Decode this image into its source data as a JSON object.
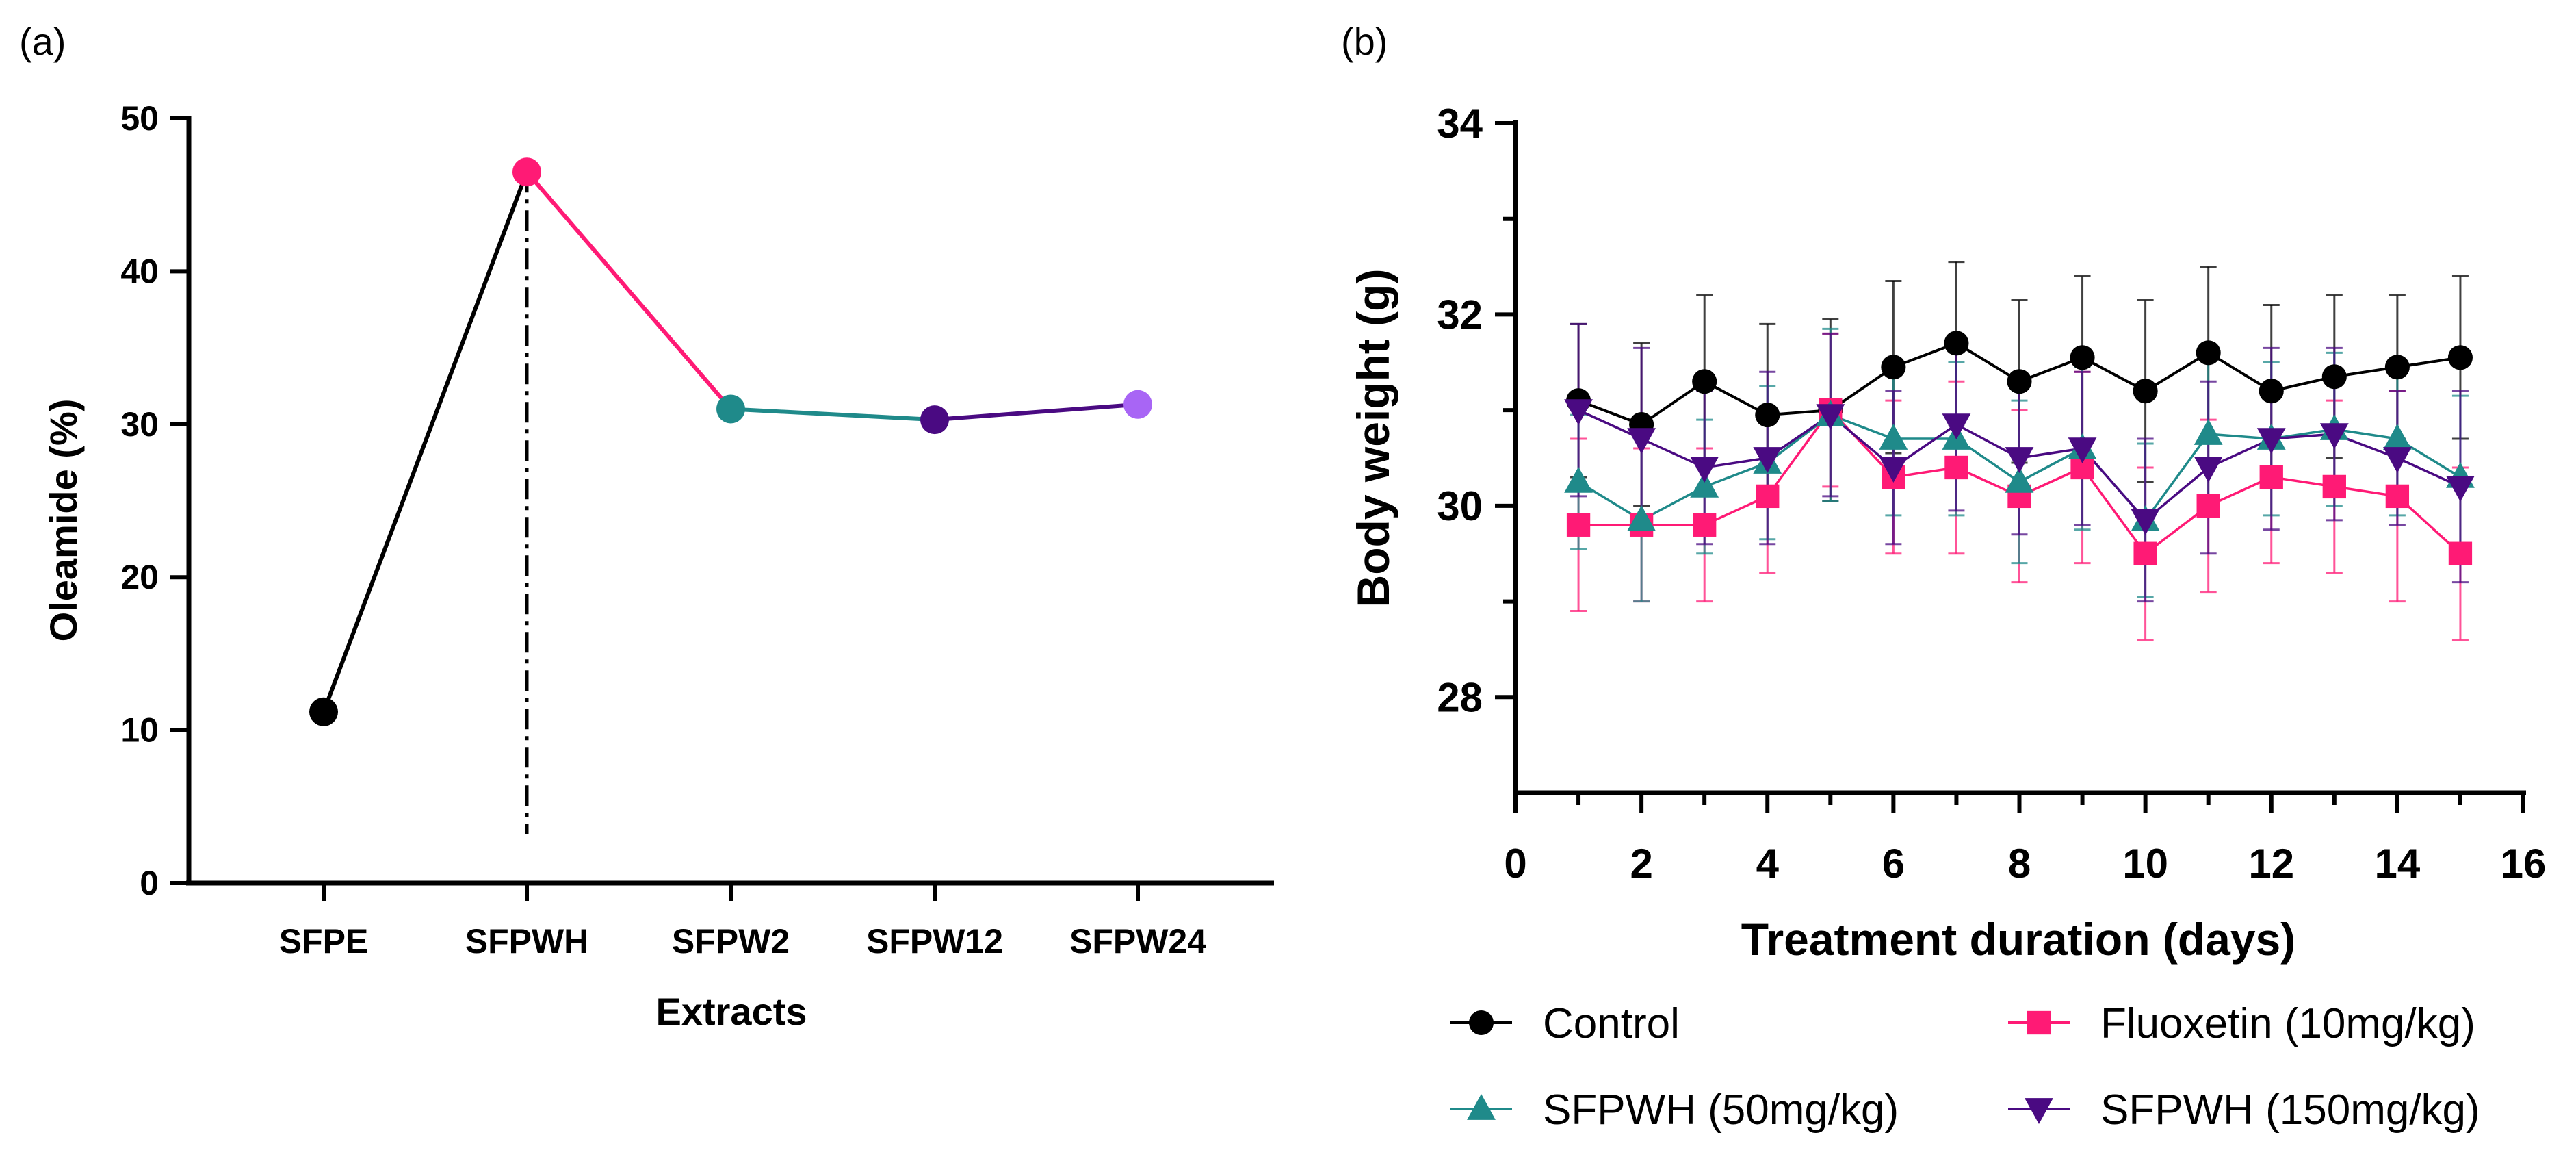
{
  "chart_data": [
    {
      "panel": "(a)",
      "type": "line",
      "categories": [
        "SFPE",
        "SFPWH",
        "SFPW2",
        "SFPW12",
        "SFPW24"
      ],
      "values": [
        11.2,
        46.5,
        31.0,
        30.3,
        31.3
      ],
      "point_colors": [
        "#000000",
        "#ff1a75",
        "#1f8a8a",
        "#4a0a82",
        "#a865f5"
      ],
      "segment_colors": [
        "#000000",
        "#ff1a75",
        "#1f8a8a",
        "#4a0a82"
      ],
      "xlabel": "Extracts",
      "ylabel": "Oleamide (%)",
      "ylim": [
        0,
        50
      ],
      "yticks": [
        "0",
        "10",
        "20",
        "30",
        "40",
        "50"
      ],
      "reference_line": {
        "category": "SFPWH",
        "style": "dash-dot"
      }
    },
    {
      "panel": "(b)",
      "type": "line",
      "xlabel": "Treatment duration (days)",
      "ylabel": "Body weight (g)",
      "xlim": [
        0,
        16
      ],
      "ylim": [
        27,
        34
      ],
      "xticks": [
        "0",
        "2",
        "4",
        "6",
        "8",
        "10",
        "12",
        "14",
        "16"
      ],
      "yticks": [
        "28",
        "30",
        "32",
        "34"
      ],
      "x": [
        1,
        2,
        3,
        4,
        5,
        6,
        7,
        8,
        9,
        10,
        11,
        12,
        13,
        14,
        15
      ],
      "series": [
        {
          "name": "Control",
          "color": "#000000",
          "marker": "circle",
          "values": [
            31.1,
            30.85,
            31.3,
            30.95,
            31.0,
            31.45,
            31.7,
            31.3,
            31.55,
            31.2,
            31.6,
            31.2,
            31.35,
            31.45,
            31.55
          ],
          "errors": [
            0.8,
            0.85,
            0.9,
            0.95,
            0.95,
            0.9,
            0.85,
            0.85,
            0.85,
            0.95,
            0.9,
            0.9,
            0.85,
            0.75,
            0.85
          ]
        },
        {
          "name": "Fluoxetin (10mg/kg)",
          "color": "#ff1a75",
          "marker": "square",
          "values": [
            29.8,
            29.8,
            29.8,
            30.1,
            31.0,
            30.3,
            30.4,
            30.1,
            30.4,
            29.5,
            30.0,
            30.3,
            30.2,
            30.1,
            29.5
          ],
          "errors": [
            0.9,
            0.8,
            0.8,
            0.8,
            0.8,
            0.8,
            0.9,
            0.9,
            1.0,
            0.9,
            0.9,
            0.9,
            0.9,
            1.1,
            0.9
          ]
        },
        {
          "name": "SFPWH (50mg/kg)",
          "color": "#1f8a8a",
          "marker": "triangle-up",
          "values": [
            30.25,
            29.85,
            30.2,
            30.45,
            30.95,
            30.7,
            30.7,
            30.25,
            30.6,
            29.85,
            30.75,
            30.7,
            30.8,
            30.7,
            30.3
          ],
          "errors": [
            0.7,
            0.85,
            0.7,
            0.8,
            0.9,
            0.8,
            0.8,
            0.85,
            0.85,
            0.8,
            0.8,
            0.8,
            0.8,
            0.8,
            0.85
          ]
        },
        {
          "name": "SFPWH (150mg/kg)",
          "color": "#4a0a82",
          "marker": "triangle-down",
          "values": [
            31.0,
            30.7,
            30.4,
            30.5,
            30.95,
            30.4,
            30.85,
            30.5,
            30.6,
            29.85,
            30.4,
            30.7,
            30.75,
            30.5,
            30.2
          ],
          "errors": [
            0.9,
            0.95,
            0.8,
            0.9,
            0.85,
            0.8,
            0.9,
            0.8,
            0.8,
            0.85,
            0.9,
            0.95,
            0.9,
            0.7,
            1.0
          ]
        }
      ]
    }
  ]
}
